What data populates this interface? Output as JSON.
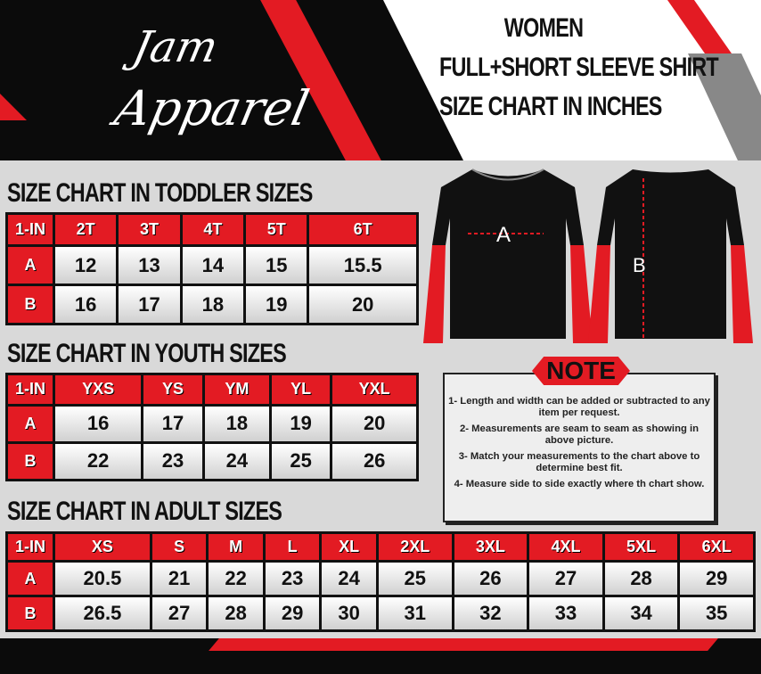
{
  "logo": {
    "line1": "Jam",
    "line2": "Apparel"
  },
  "title": {
    "line1": "WOMEN",
    "line2": "FULL+SHORT SLEEVE SHIRT",
    "line3": "SIZE CHART IN INCHES"
  },
  "colors": {
    "accent": "#e31b23",
    "dark": "#0b0b0b"
  },
  "diagram": {
    "front_label": "A",
    "back_label": "B"
  },
  "toddler": {
    "title": "SIZE CHART IN TODDLER  SIZES",
    "headers": [
      "1-IN",
      "2T",
      "3T",
      "4T",
      "5T",
      "6T"
    ],
    "rows": [
      [
        "A",
        "12",
        "13",
        "14",
        "15",
        "15.5"
      ],
      [
        "B",
        "16",
        "17",
        "18",
        "19",
        "20"
      ]
    ]
  },
  "youth": {
    "title": "SIZE CHART IN YOUTH  SIZES",
    "headers": [
      "1-IN",
      "YXS",
      "YS",
      "YM",
      "YL",
      "YXL"
    ],
    "rows": [
      [
        "A",
        "16",
        "17",
        "18",
        "19",
        "20"
      ],
      [
        "B",
        "22",
        "23",
        "24",
        "25",
        "26"
      ]
    ]
  },
  "adult": {
    "title": "SIZE CHART IN ADULT SIZES",
    "headers": [
      "1-IN",
      "XS",
      "S",
      "M",
      "L",
      "XL",
      "2XL",
      "3XL",
      "4XL",
      "5XL",
      "6XL"
    ],
    "rows": [
      [
        "A",
        "20.5",
        "21",
        "22",
        "23",
        "24",
        "25",
        "26",
        "27",
        "28",
        "29"
      ],
      [
        "B",
        "26.5",
        "27",
        "28",
        "29",
        "30",
        "31",
        "32",
        "33",
        "34",
        "35"
      ]
    ]
  },
  "note": {
    "label": "NOTE",
    "items": [
      "1- Length and width can be added or subtracted to any item per request.",
      "2- Measurements are seam to seam  as showing in above picture.",
      "3- Match your measurements to the chart above to determine best fit.",
      "4- Measure side to side exactly where th chart show."
    ]
  }
}
